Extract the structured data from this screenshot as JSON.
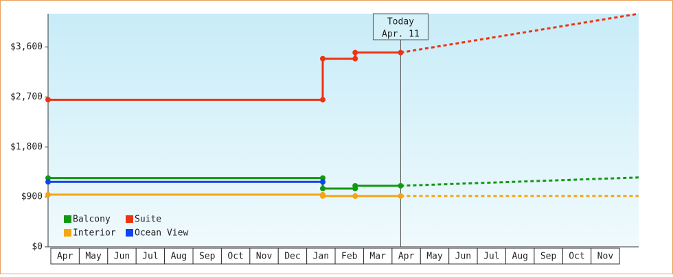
{
  "chart_data": {
    "type": "line",
    "ylim": [
      0,
      4200
    ],
    "yticks": [
      {
        "value": 0,
        "label": "$0"
      },
      {
        "value": 900,
        "label": "$900"
      },
      {
        "value": 1800,
        "label": "$1,800"
      },
      {
        "value": 2700,
        "label": "$2,700"
      },
      {
        "value": 3600,
        "label": "$3,600"
      }
    ],
    "xlim": [
      0,
      20.77
    ],
    "xticks": [
      {
        "value": 0.5,
        "label": "Apr"
      },
      {
        "value": 1.5,
        "label": "May"
      },
      {
        "value": 2.5,
        "label": "Jun"
      },
      {
        "value": 3.5,
        "label": "Jul"
      },
      {
        "value": 4.5,
        "label": "Aug"
      },
      {
        "value": 5.5,
        "label": "Sep"
      },
      {
        "value": 6.5,
        "label": "Oct"
      },
      {
        "value": 7.5,
        "label": "Nov"
      },
      {
        "value": 8.5,
        "label": "Dec"
      },
      {
        "value": 9.5,
        "label": "Jan"
      },
      {
        "value": 10.5,
        "label": "Feb"
      },
      {
        "value": 11.5,
        "label": "Mar"
      },
      {
        "value": 12.5,
        "label": "Apr"
      },
      {
        "value": 13.5,
        "label": "May"
      },
      {
        "value": 14.5,
        "label": "Jun"
      },
      {
        "value": 15.5,
        "label": "Jul"
      },
      {
        "value": 16.5,
        "label": "Aug"
      },
      {
        "value": 17.5,
        "label": "Sep"
      },
      {
        "value": 18.5,
        "label": "Oct"
      },
      {
        "value": 19.5,
        "label": "Nov"
      }
    ],
    "today": {
      "x": 12.4,
      "label": [
        "Today",
        "Apr. 11"
      ]
    },
    "legend": "lower left",
    "series": [
      {
        "name": "Balcony",
        "color": "#119911",
        "x": [
          0,
          9.66,
          9.66,
          10.8,
          10.8,
          12.4
        ],
        "values": [
          1240,
          1240,
          1050,
          1050,
          1100,
          1100
        ],
        "forecast_x": [
          12.4,
          20.77
        ],
        "forecast_values": [
          1100,
          1250
        ]
      },
      {
        "name": "Suite",
        "color": "#ee3311",
        "x": [
          0,
          9.66,
          9.66,
          10.8,
          10.8,
          12.4
        ],
        "values": [
          2650,
          2650,
          3390,
          3390,
          3500,
          3500
        ],
        "forecast_x": [
          12.4,
          20.77
        ],
        "forecast_values": [
          3500,
          4200
        ]
      },
      {
        "name": "Interior",
        "color": "#f5a511",
        "x": [
          0,
          9.66,
          9.66,
          10.8,
          10.8,
          12.4
        ],
        "values": [
          940,
          940,
          915,
          915,
          915,
          915
        ],
        "forecast_x": [
          12.4,
          20.77
        ],
        "forecast_values": [
          915,
          915
        ]
      },
      {
        "name": "Ocean View",
        "color": "#1144ee",
        "x": [
          0,
          9.66
        ],
        "values": [
          1170,
          1170
        ]
      }
    ]
  }
}
